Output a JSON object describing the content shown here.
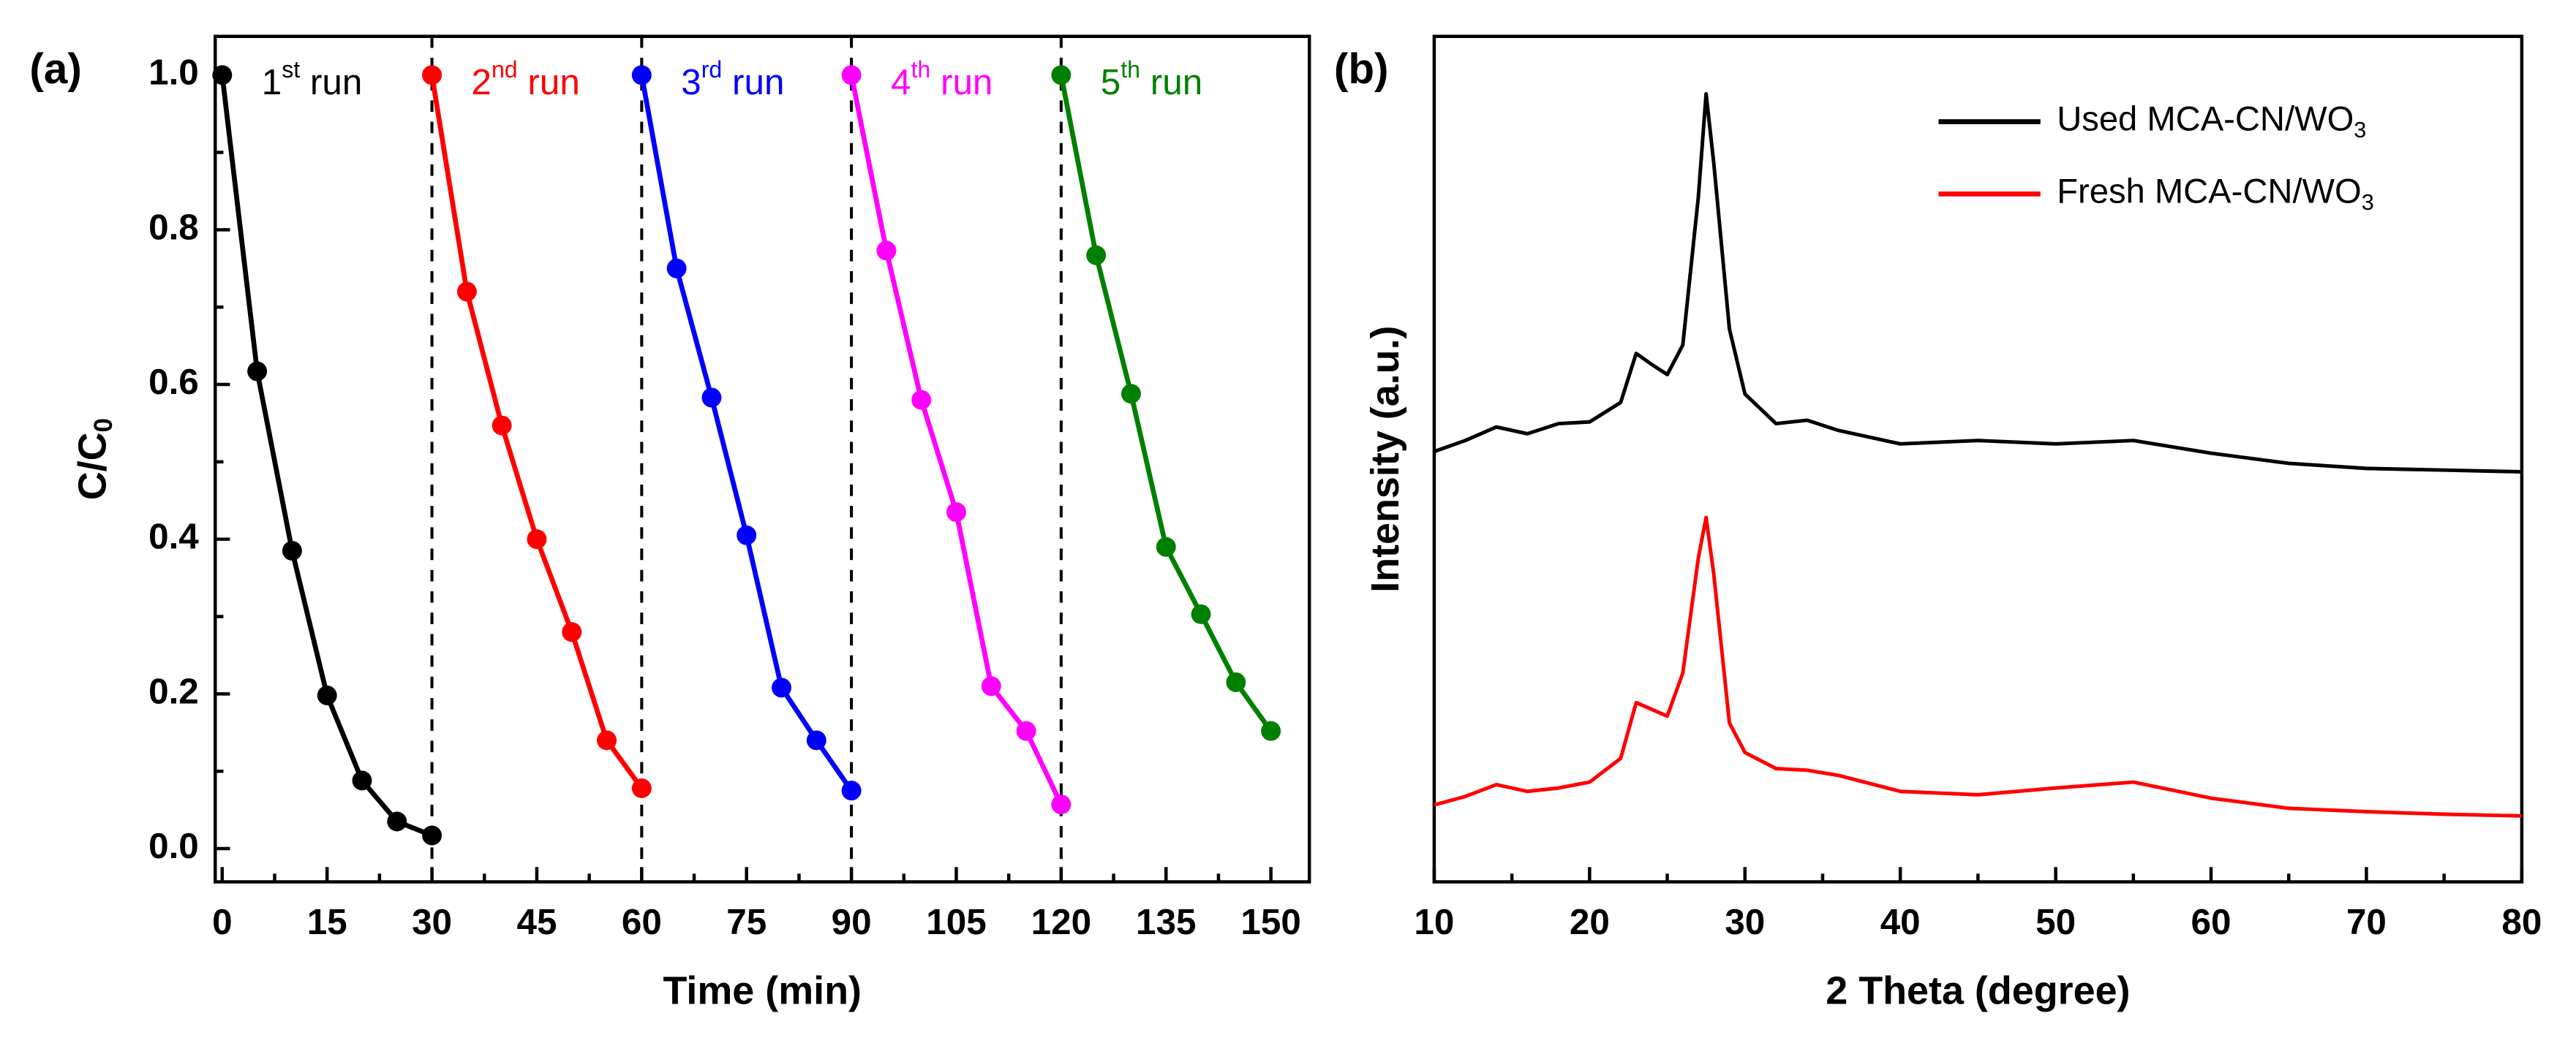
{
  "chart_data": [
    {
      "type": "line",
      "panel_label": "(a)",
      "xlabel": "Time (min)",
      "ylabel": "C/C0",
      "xlim": [
        -1,
        155.5
      ],
      "ylim": [
        -0.043,
        1.05
      ],
      "xticks": [
        0,
        15,
        30,
        45,
        60,
        75,
        90,
        105,
        120,
        135,
        150
      ],
      "yticks": [
        {
          "value": 0,
          "label": "0.0"
        },
        {
          "value": 0.2,
          "label": "0.2"
        },
        {
          "value": 0.4,
          "label": "0.4"
        },
        {
          "value": 0.6,
          "label": "0.6"
        },
        {
          "value": 0.8,
          "label": "0.8"
        },
        {
          "value": 1,
          "label": "1.0"
        }
      ],
      "vlines": [
        30,
        60,
        90,
        120
      ],
      "markers": true,
      "series": [
        {
          "name": "1st run",
          "color": "#000000",
          "x": [
            0,
            5,
            10,
            15,
            20,
            25,
            30
          ],
          "values": [
            1.0,
            0.617,
            0.385,
            0.198,
            0.088,
            0.035,
            0.017
          ]
        },
        {
          "name": "2nd run",
          "color": "#ff0000",
          "x": [
            30,
            35,
            40,
            45,
            50,
            55,
            60
          ],
          "values": [
            1.0,
            0.72,
            0.547,
            0.4,
            0.28,
            0.14,
            0.078
          ]
        },
        {
          "name": "3rd run",
          "color": "#0000ff",
          "x": [
            60,
            65,
            70,
            75,
            80,
            85,
            90
          ],
          "values": [
            1.0,
            0.75,
            0.583,
            0.405,
            0.208,
            0.14,
            0.075
          ]
        },
        {
          "name": "4th run",
          "color": "#ff00ff",
          "x": [
            90,
            95,
            100,
            105,
            110,
            115,
            120
          ],
          "values": [
            1.0,
            0.773,
            0.58,
            0.435,
            0.21,
            0.152,
            0.057
          ]
        },
        {
          "name": "5th run",
          "color": "#008000",
          "x": [
            120,
            125,
            130,
            135,
            140,
            145,
            150
          ],
          "values": [
            1.0,
            0.767,
            0.588,
            0.39,
            0.303,
            0.215,
            0.152
          ]
        }
      ]
    },
    {
      "type": "line",
      "panel_label": "(b)",
      "xlabel": "2 Theta (degree)",
      "ylabel": "Intensity (a.u.)",
      "xlim": [
        10,
        80
      ],
      "ylim": [
        0,
        100
      ],
      "xticks": [
        10,
        20,
        30,
        40,
        50,
        60,
        70,
        80
      ],
      "legend": "upper right",
      "series": [
        {
          "name": "Used MCA-CN/WO3",
          "color": "#000000",
          "x": [
            10,
            12,
            14,
            16,
            18,
            20,
            22,
            23,
            24,
            25,
            26,
            27,
            27.5,
            28,
            29,
            30,
            32,
            34,
            36,
            40,
            45,
            50,
            55,
            60,
            65,
            70,
            75,
            80
          ],
          "values": [
            50.9,
            52.2,
            53.8,
            53.0,
            54.2,
            54.4,
            56.7,
            62.5,
            61.2,
            60.0,
            63.5,
            81.0,
            93.2,
            84.9,
            65.4,
            57.7,
            54.2,
            54.6,
            53.4,
            51.8,
            52.2,
            51.8,
            52.2,
            50.7,
            49.5,
            48.9,
            48.7,
            48.5
          ]
        },
        {
          "name": "Fresh MCA-CN/WO3",
          "color": "#ff0000",
          "x": [
            10,
            12,
            14,
            16,
            18,
            20,
            22,
            23,
            24,
            25,
            26,
            27,
            27.5,
            28,
            29,
            30,
            32,
            34,
            36,
            40,
            45,
            50,
            55,
            60,
            65,
            70,
            75,
            80
          ],
          "values": [
            9.1,
            10.1,
            11.5,
            10.7,
            11.1,
            11.8,
            14.6,
            21.2,
            20.4,
            19.6,
            24.7,
            38.3,
            43.1,
            36.3,
            18.8,
            15.3,
            13.4,
            13.2,
            12.6,
            10.7,
            10.3,
            11.1,
            11.8,
            9.9,
            8.7,
            8.3,
            8.0,
            7.8
          ]
        }
      ]
    }
  ]
}
